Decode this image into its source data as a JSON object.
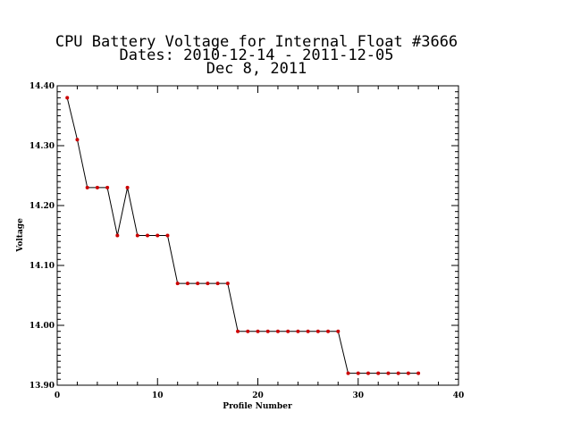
{
  "chart_data": {
    "type": "line",
    "title_lines": [
      "CPU Battery Voltage for Internal Float #3666",
      "Dates:  2010-12-14 -  2011-12-05",
      "Dec  8, 2011"
    ],
    "xlabel": "Profile Number",
    "ylabel": "Voltage",
    "xlim": [
      0,
      40
    ],
    "ylim": [
      13.9,
      14.4
    ],
    "x_ticks": [
      0,
      10,
      20,
      30,
      40
    ],
    "x_tick_labels": [
      "0",
      "10",
      "20",
      "30",
      "40"
    ],
    "y_ticks": [
      13.9,
      14.0,
      14.1,
      14.2,
      14.3,
      14.4
    ],
    "y_tick_labels": [
      "13.90",
      "14.00",
      "14.10",
      "14.20",
      "14.30",
      "14.40"
    ],
    "grid": false,
    "series": [
      {
        "x": [
          1,
          2,
          3,
          4,
          5,
          6,
          7,
          8,
          9,
          10,
          11,
          12,
          13,
          14,
          15,
          16,
          17,
          18,
          19,
          20,
          21,
          22,
          23,
          24,
          25,
          26,
          27,
          28,
          29,
          30,
          31,
          32,
          33,
          34,
          35,
          36
        ],
        "y": [
          14.38,
          14.31,
          14.23,
          14.23,
          14.23,
          14.15,
          14.23,
          14.15,
          14.15,
          14.15,
          14.15,
          14.07,
          14.07,
          14.07,
          14.07,
          14.07,
          14.07,
          13.99,
          13.99,
          13.99,
          13.99,
          13.99,
          13.99,
          13.99,
          13.99,
          13.99,
          13.99,
          13.99,
          13.92,
          13.92,
          13.92,
          13.92,
          13.92,
          13.92,
          13.92,
          13.92
        ]
      }
    ],
    "colors": {
      "line": "#000000",
      "marker": "#cc0000"
    }
  }
}
